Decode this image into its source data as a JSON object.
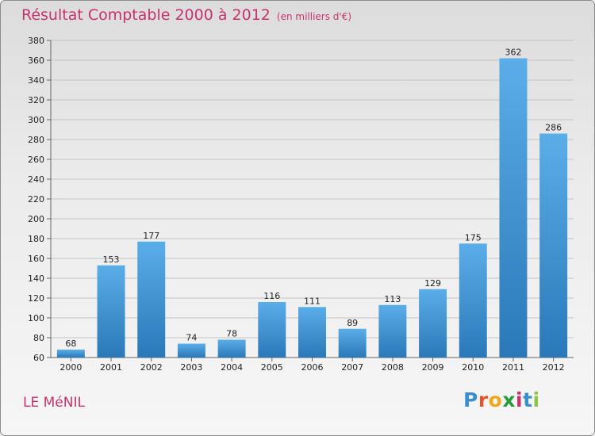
{
  "title": "Résultat Comptable 2000 à 2012",
  "subtitle": "(en milliers d'€)",
  "commune": "LE MéNIL",
  "logo": {
    "letters": [
      "P",
      "r",
      "o",
      "x",
      "i",
      "t",
      "i"
    ],
    "colors": [
      "#3a8fd0",
      "#e8542a",
      "#f0a81a",
      "#2a9a3a",
      "#c8326a",
      "#3a8fd0",
      "#8cc63f"
    ]
  },
  "colors": {
    "title": "#c8326a",
    "bar_top": "#5aaee8",
    "bar_bottom": "#2a78b8"
  },
  "chart_data": {
    "type": "bar",
    "categories": [
      "2000",
      "2001",
      "2002",
      "2003",
      "2004",
      "2005",
      "2006",
      "2007",
      "2008",
      "2009",
      "2010",
      "2011",
      "2012"
    ],
    "values": [
      68,
      153,
      177,
      74,
      78,
      116,
      111,
      89,
      113,
      129,
      175,
      362,
      286
    ],
    "ylim": [
      60,
      380
    ],
    "yticks": [
      60,
      80,
      100,
      120,
      140,
      160,
      180,
      200,
      220,
      240,
      260,
      280,
      300,
      320,
      340,
      360,
      380
    ],
    "grid": true
  }
}
